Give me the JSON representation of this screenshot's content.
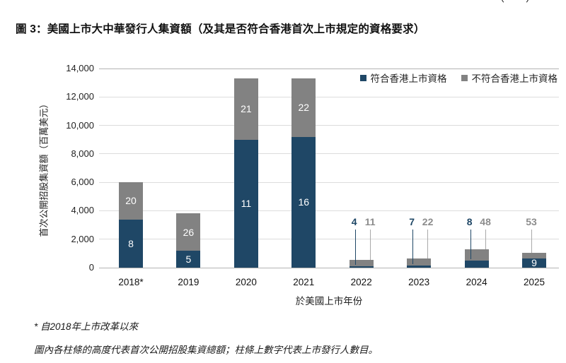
{
  "header": {
    "clipped_fragment": "（　　）",
    "title": "圖 3：美國上市大中華發行人集資額（及其是否符合香港首次上市規定的資格要求）"
  },
  "colors": {
    "qualified": "#1F4766",
    "not_qualified": "#828282",
    "gridline": "#DCDCDC",
    "axis_line": "#B3B3B3",
    "callout_blue_text": "#1F4766",
    "callout_gray_text": "#8C8C8C",
    "leader_blue": "#1F4766",
    "leader_gray": "#A9A9A9",
    "inbar_text": "#FFFFFF"
  },
  "legend": [
    {
      "label": "符合香港上市資格",
      "color": "#1F4766"
    },
    {
      "label": "不符合香港上市資格",
      "color": "#828282"
    }
  ],
  "chart_data": {
    "type": "bar",
    "stacked": true,
    "title": "圖 3：美國上市大中華發行人集資額（及其是否符合香港首次上市規定的資格要求）",
    "xlabel": "於美國上市年份",
    "ylabel": "首次公開招股集資額（百萬美元）",
    "ylim": [
      0,
      14000
    ],
    "ytick_values": [
      0,
      2000,
      4000,
      6000,
      8000,
      10000,
      12000,
      14000
    ],
    "ytick_labels": [
      "0",
      "2,000",
      "4,000",
      "6,000",
      "8,000",
      "10,000",
      "12,000",
      "14,000"
    ],
    "grid": "horizontal",
    "legend_position": "top-right-inside",
    "categories": [
      "2018*",
      "2019",
      "2020",
      "2021",
      "2022",
      "2023",
      "2024",
      "2025"
    ],
    "series": [
      {
        "name": "符合香港上市資格",
        "values": [
          3400,
          1200,
          9000,
          9200,
          120,
          150,
          500,
          650
        ],
        "counts": [
          8,
          5,
          11,
          16,
          4,
          7,
          8,
          9
        ]
      },
      {
        "name": "不符合香港上市資格",
        "values": [
          2600,
          2600,
          4300,
          4100,
          430,
          500,
          800,
          400
        ],
        "counts": [
          20,
          26,
          21,
          22,
          11,
          22,
          48,
          53
        ]
      }
    ],
    "count_label_mode": [
      [
        "inside",
        "inside"
      ],
      [
        "inside",
        "inside"
      ],
      [
        "inside",
        "inside"
      ],
      [
        "inside",
        "inside"
      ],
      [
        "callout",
        "callout"
      ],
      [
        "callout",
        "callout"
      ],
      [
        "callout",
        "callout"
      ],
      [
        "inside",
        "callout"
      ]
    ]
  },
  "footnotes": [
    "* 自2018年上市改革以來",
    "圖內各柱條的高度代表首次公開招股集資總額；柱條上數字代表上市發行人數目。"
  ]
}
